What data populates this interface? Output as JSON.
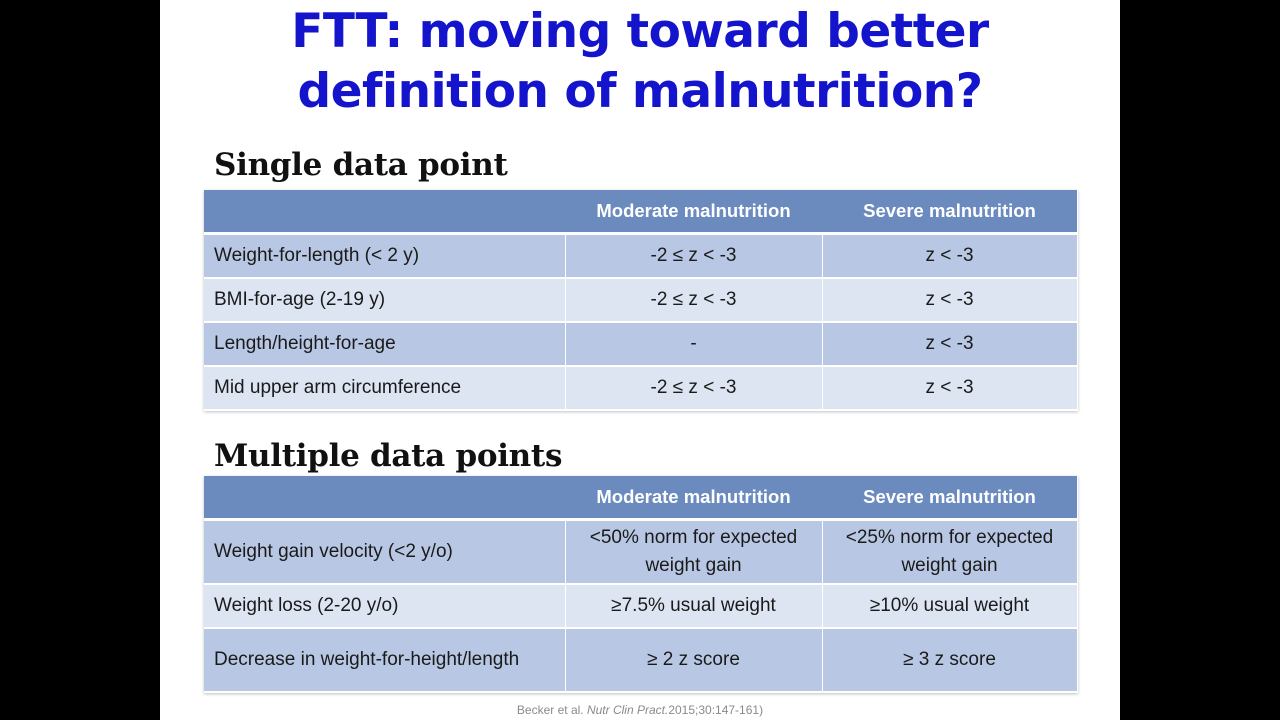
{
  "slide": {
    "title_line1": "FTT: moving toward better",
    "title_line2": "definition of malnutrition?"
  },
  "single": {
    "heading": "Single data point",
    "headers": [
      "",
      "Moderate malnutrition",
      "Severe malnutrition"
    ],
    "rows": [
      {
        "label": "Weight-for-length (< 2 y)",
        "moderate": "-2 ≤ z < -3",
        "severe": "z < -3"
      },
      {
        "label": "BMI-for-age (2-19 y)",
        "moderate": "-2 ≤ z < -3",
        "severe": "z < -3"
      },
      {
        "label": "Length/height-for-age",
        "moderate": "-",
        "severe": "z < -3"
      },
      {
        "label": "Mid upper arm circumference",
        "moderate": "-2 ≤ z < -3",
        "severe": "z < -3"
      }
    ]
  },
  "multiple": {
    "heading": "Multiple data points",
    "headers": [
      "",
      "Moderate malnutrition",
      "Severe malnutrition"
    ],
    "rows": [
      {
        "label": "Weight gain velocity (<2 y/o)",
        "moderate": "<50% norm for expected weight gain",
        "severe": "<25% norm for expected weight gain"
      },
      {
        "label": "Weight loss (2-20 y/o)",
        "moderate": "≥7.5% usual weight",
        "severe": "≥10% usual weight"
      },
      {
        "label": "Decrease in weight-for-height/length",
        "moderate": "≥ 2 z score",
        "severe": "≥ 3 z score"
      }
    ]
  },
  "citation": {
    "authors": "Becker et al. ",
    "journal": "Nutr Clin Pract.",
    "details": "2015;30:147-161)"
  },
  "colors": {
    "title": "#1414cc",
    "header_fill": "#6b8bbf",
    "row_dark": "#b8c8e4",
    "row_light": "#dde5f3"
  }
}
